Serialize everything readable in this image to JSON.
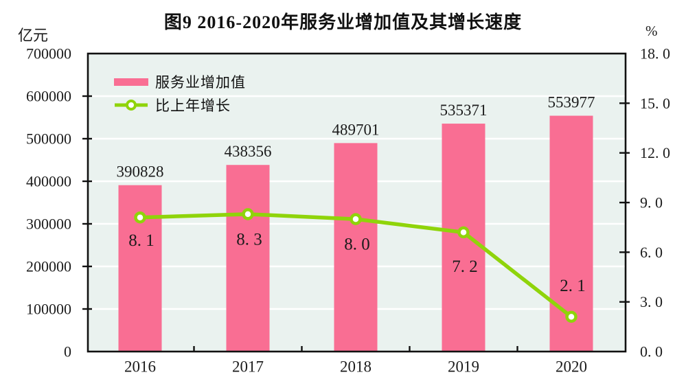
{
  "title": "图9  2016-2020年服务业增加值及其增长速度",
  "left_axis": {
    "unit": "亿元",
    "tick_labels": [
      "700000",
      "600000",
      "500000",
      "400000",
      "300000",
      "200000",
      "100000",
      "0"
    ]
  },
  "right_axis": {
    "unit": "%",
    "tick_labels": [
      "18. 0",
      "15. 0",
      "12. 0",
      "9. 0",
      "6. 0",
      "3. 0",
      "0. 0"
    ]
  },
  "legend": {
    "items": [
      {
        "label": "服务业增加值",
        "type": "bar"
      },
      {
        "label": "比上年增长",
        "type": "line"
      }
    ]
  },
  "colors": {
    "bar": "#F96E93",
    "line": "#8FD40A",
    "marker_fill": "#FFFFFF",
    "plot_bg": "#EAF2EF",
    "grid": "#FFFFFF",
    "frame": "#111111",
    "text": "#1B1B1B"
  },
  "chart_data": {
    "type": "bar+line",
    "title": "图9 2016-2020年服务业增加值及其增长速度",
    "categories": [
      "2016",
      "2017",
      "2018",
      "2019",
      "2020"
    ],
    "series": [
      {
        "name": "服务业增加值",
        "type": "bar",
        "axis": "left",
        "ylabel": "亿元",
        "values": [
          390828,
          438356,
          489701,
          535371,
          553977
        ],
        "labels": [
          "390828",
          "438356",
          "489701",
          "535371",
          "553977"
        ]
      },
      {
        "name": "比上年增长",
        "type": "line",
        "axis": "right",
        "ylabel": "%",
        "values": [
          8.1,
          8.3,
          8.0,
          7.2,
          2.1
        ],
        "labels": [
          "8. 1",
          "8. 3",
          "8. 0",
          "7. 2",
          "2. 1"
        ],
        "label_side": [
          "below",
          "below",
          "below",
          "below",
          "above"
        ]
      }
    ],
    "left_ylim": [
      0,
      700000
    ],
    "left_step": 100000,
    "right_ylim": [
      0,
      18
    ],
    "right_step": 3,
    "grid": true,
    "legend_position": "top-left"
  }
}
